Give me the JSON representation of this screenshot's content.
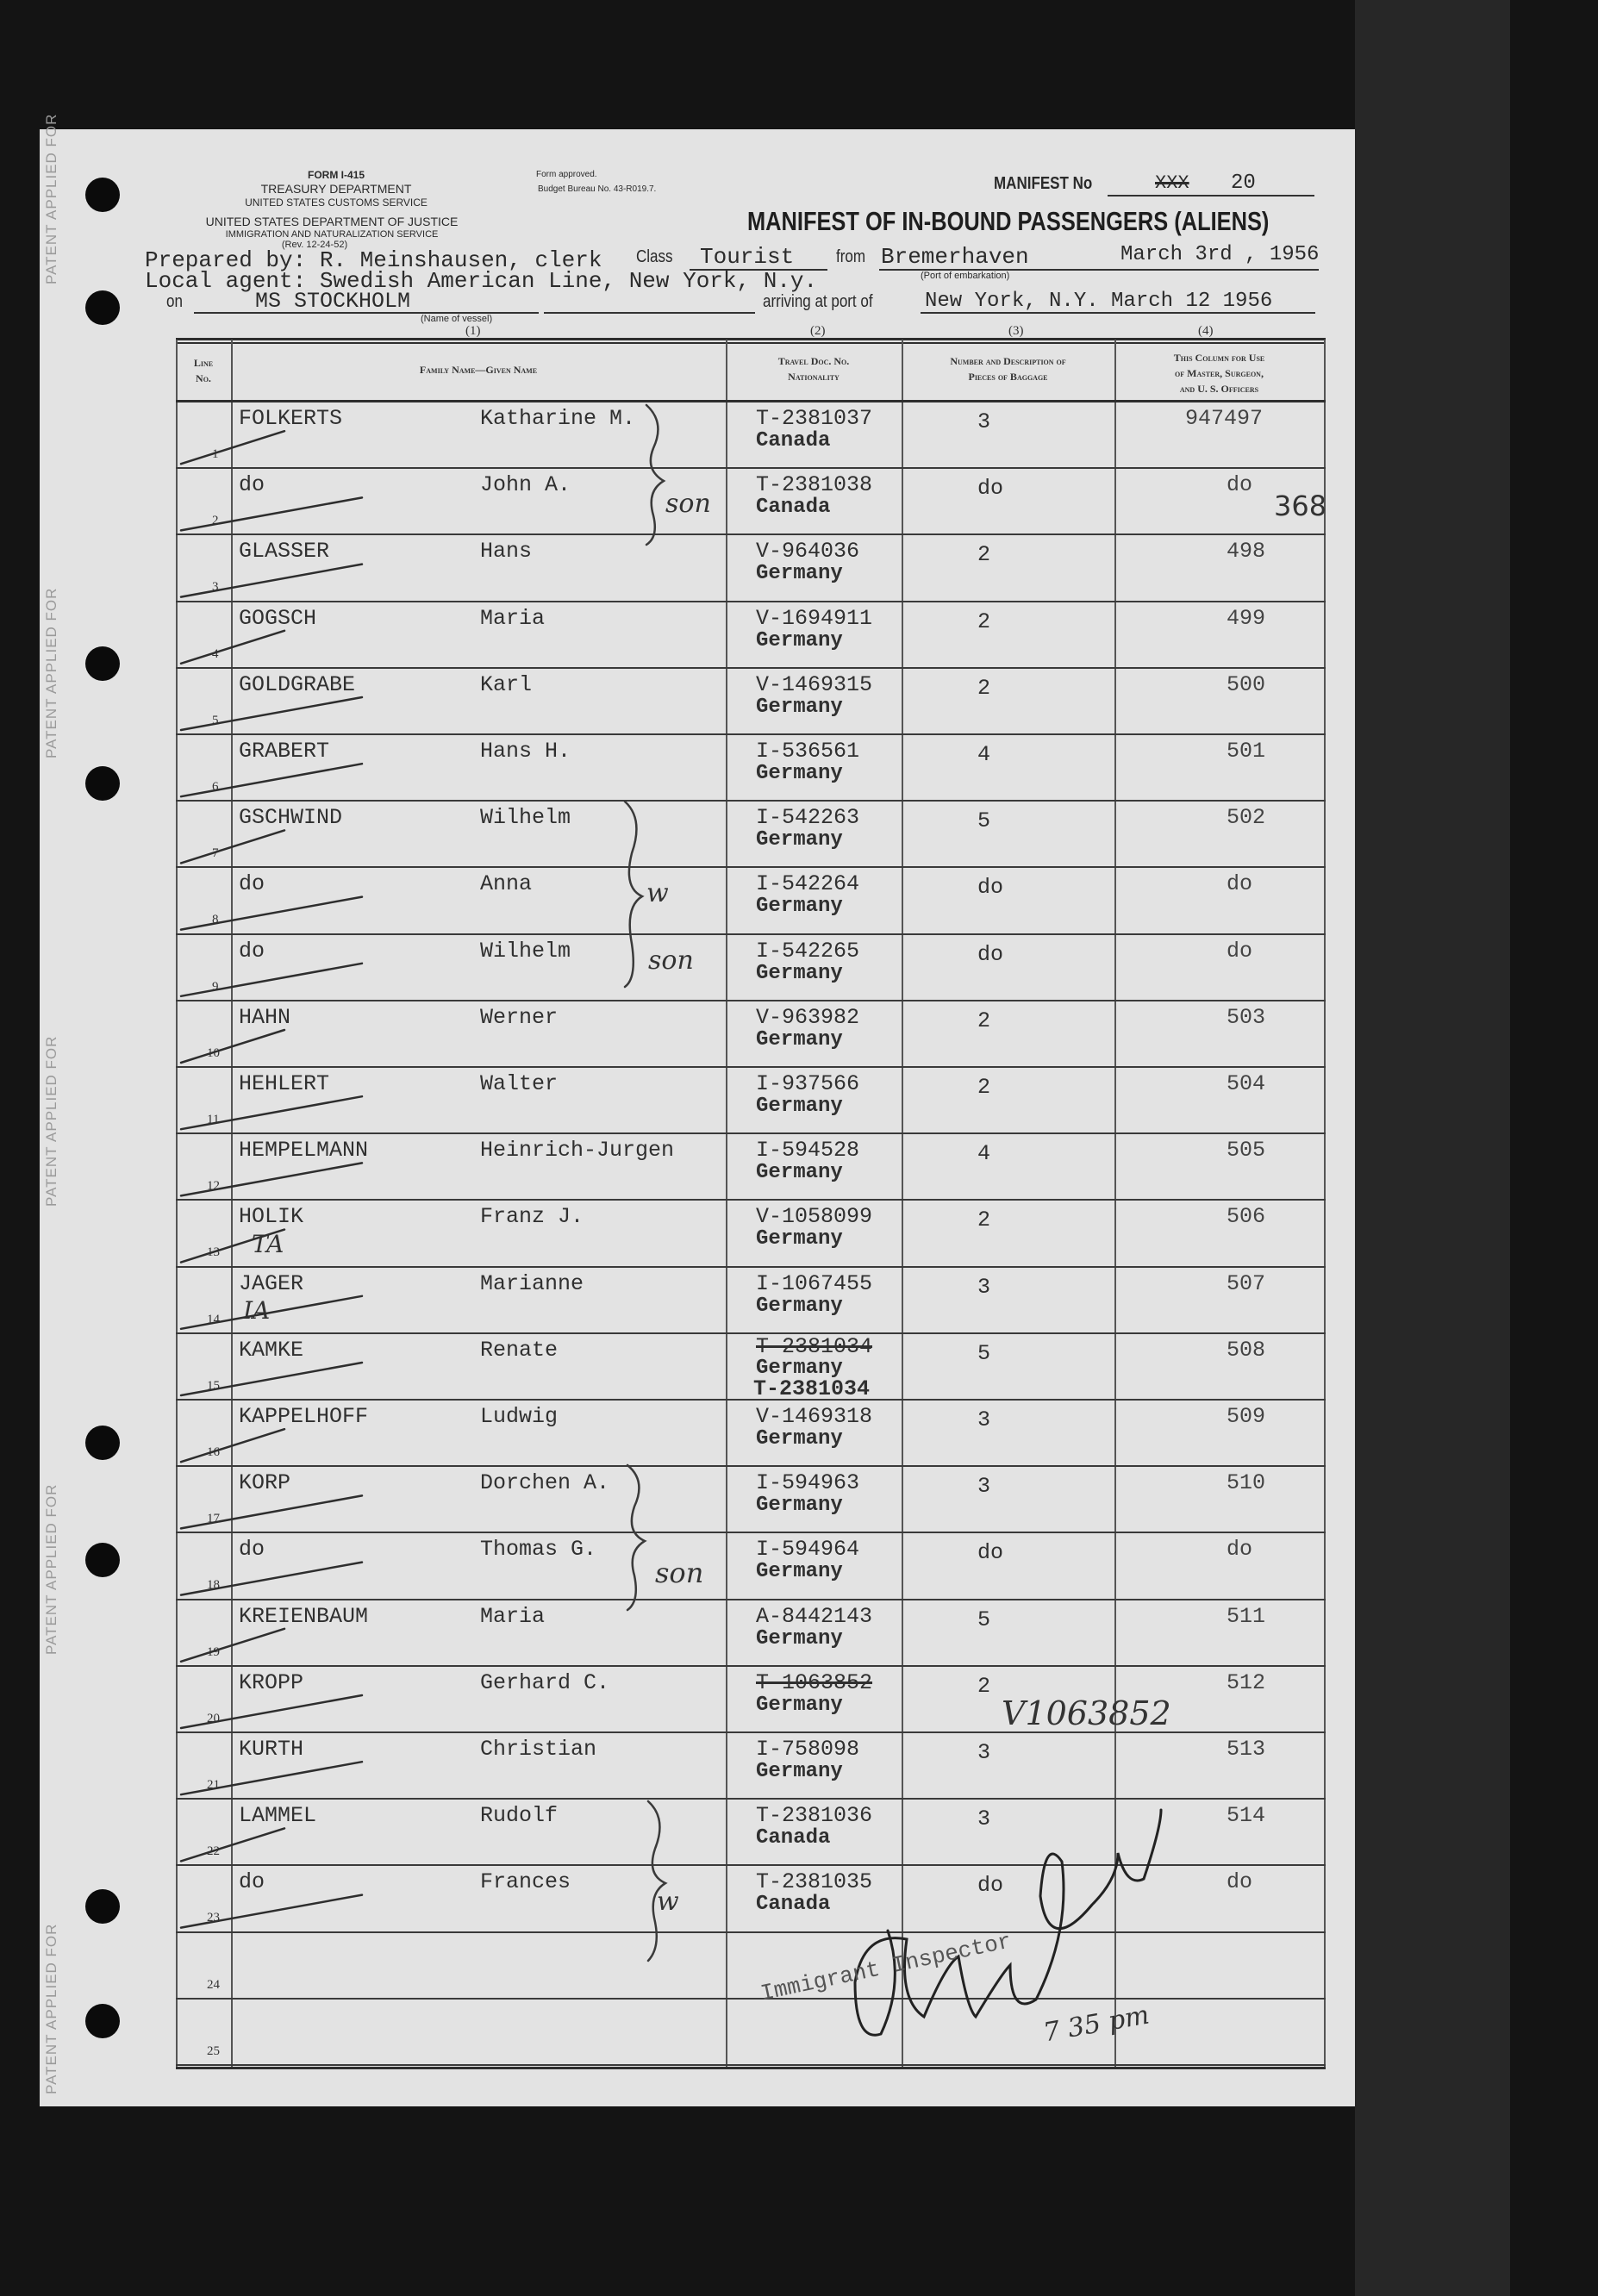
{
  "margin": {
    "patent_text": "PATENT APPLIED FOR"
  },
  "form": {
    "form_no": "FORM I-415",
    "dept": "TREASURY DEPARTMENT",
    "customs": "UNITED STATES CUSTOMS SERVICE",
    "justice": "UNITED STATES DEPARTMENT OF JUSTICE",
    "ins": "IMMIGRATION AND NATURALIZATION SERVICE",
    "rev": "(Rev. 12-24-52)",
    "approved": "Form approved.",
    "budget": "Budget Bureau No. 43-R019.7."
  },
  "manifest": {
    "label": "MANIFEST No",
    "struck": "XXX",
    "number": "20",
    "title": "MANIFEST OF IN-BOUND PASSENGERS (ALIENS)"
  },
  "voyage": {
    "prepared_by": "Prepared by: R. Meinshausen, clerk",
    "local_agent": "Local agent: Swedish American Line, New York, N.y.",
    "class_label": "Class",
    "class_value": "Tourist",
    "from_label": "from",
    "port": "Bremerhaven",
    "port_caption": "(Port of embarkation)",
    "date_depart": "March 3rd , 1956",
    "on_label": "on",
    "vessel": "MS STOCKHOLM",
    "vessel_caption": "(Name of vessel)",
    "arriving_label": "arriving at port of",
    "arrival": "New York, N.Y. March 12 1956"
  },
  "columns": {
    "numbers": [
      "(1)",
      "(2)",
      "(3)",
      "(4)"
    ],
    "line_no": [
      "Line",
      "No."
    ],
    "name": "Family Name—Given Name",
    "doc": [
      "Travel Doc. No.",
      "Nationality"
    ],
    "baggage": [
      "Number and Description of",
      "Pieces of Baggage"
    ],
    "officers": [
      "This Column for Use",
      "of Master, Surgeon,",
      "and U. S. Officers"
    ]
  },
  "rows": [
    {
      "line": "1",
      "family": "FOLKERTS",
      "given": "Katharine M.",
      "doc": "T-2381037",
      "nationality": "Canada",
      "baggage": "3",
      "officer": "947497"
    },
    {
      "line": "2",
      "family": "do",
      "given": "John A.",
      "doc": "T-2381038",
      "nationality": "Canada",
      "baggage": "do",
      "officer": "do"
    },
    {
      "line": "3",
      "family": "GLASSER",
      "given": "Hans",
      "doc": "V-964036",
      "nationality": "Germany",
      "baggage": "2",
      "officer": "498"
    },
    {
      "line": "4",
      "family": "GOGSCH",
      "given": "Maria",
      "doc": "V-1694911",
      "nationality": "Germany",
      "baggage": "2",
      "officer": "499"
    },
    {
      "line": "5",
      "family": "GOLDGRABE",
      "given": "Karl",
      "doc": "V-1469315",
      "nationality": "Germany",
      "baggage": "2",
      "officer": "500"
    },
    {
      "line": "6",
      "family": "GRABERT",
      "given": "Hans H.",
      "doc": "I-536561",
      "nationality": "Germany",
      "baggage": "4",
      "officer": "501"
    },
    {
      "line": "7",
      "family": "GSCHWIND",
      "given": "Wilhelm",
      "doc": "I-542263",
      "nationality": "Germany",
      "baggage": "5",
      "officer": "502"
    },
    {
      "line": "8",
      "family": "do",
      "given": "Anna",
      "doc": "I-542264",
      "nationality": "Germany",
      "baggage": "do",
      "officer": "do"
    },
    {
      "line": "9",
      "family": "do",
      "given": "Wilhelm",
      "doc": "I-542265",
      "nationality": "Germany",
      "baggage": "do",
      "officer": "do"
    },
    {
      "line": "10",
      "family": "HAHN",
      "given": "Werner",
      "doc": "V-963982",
      "nationality": "Germany",
      "baggage": "2",
      "officer": "503"
    },
    {
      "line": "11",
      "family": "HEHLERT",
      "given": "Walter",
      "doc": "I-937566",
      "nationality": "Germany",
      "baggage": "2",
      "officer": "504"
    },
    {
      "line": "12",
      "family": "HEMPELMANN",
      "given": "Heinrich-Jurgen",
      "doc": "I-594528",
      "nationality": "Germany",
      "baggage": "4",
      "officer": "505"
    },
    {
      "line": "13",
      "family": "HOLIK",
      "given": "Franz J.",
      "doc": "V-1058099",
      "nationality": "Germany",
      "baggage": "2",
      "officer": "506"
    },
    {
      "line": "14",
      "family": "JAGER",
      "given": "Marianne",
      "doc": "I-1067455",
      "nationality": "Germany",
      "baggage": "3",
      "officer": "507"
    },
    {
      "line": "15",
      "family": "KAMKE",
      "given": "Renate",
      "doc_struck": "T-2381034",
      "nationality": "Germany",
      "doc_corrected": "T-2381034",
      "baggage": "5",
      "officer": "508"
    },
    {
      "line": "16",
      "family": "KAPPELHOFF",
      "given": "Ludwig",
      "doc": "V-1469318",
      "nationality": "Germany",
      "baggage": "3",
      "officer": "509"
    },
    {
      "line": "17",
      "family": "KORP",
      "given": "Dorchen A.",
      "doc": "I-594963",
      "nationality": "Germany",
      "baggage": "3",
      "officer": "510"
    },
    {
      "line": "18",
      "family": "do",
      "given": "Thomas G.",
      "doc": "I-594964",
      "nationality": "Germany",
      "baggage": "do",
      "officer": "do"
    },
    {
      "line": "19",
      "family": "KREIENBAUM",
      "given": "Maria",
      "doc": "A-8442143",
      "nationality": "Germany",
      "baggage": "5",
      "officer": "511"
    },
    {
      "line": "20",
      "family": "KROPP",
      "given": "Gerhard C.",
      "doc_struck": "T-1063852",
      "nationality": "Germany",
      "baggage": "2",
      "officer": "512"
    },
    {
      "line": "21",
      "family": "KURTH",
      "given": "Christian",
      "doc": "I-758098",
      "nationality": "Germany",
      "baggage": "3",
      "officer": "513"
    },
    {
      "line": "22",
      "family": "LAMMEL",
      "given": "Rudolf",
      "doc": "T-2381036",
      "nationality": "Canada",
      "baggage": "3",
      "officer": "514"
    },
    {
      "line": "23",
      "family": "do",
      "given": "Frances",
      "doc": "T-2381035",
      "nationality": "Canada",
      "baggage": "do",
      "officer": "do"
    },
    {
      "line": "24"
    },
    {
      "line": "25"
    }
  ],
  "annotations": {
    "page_count": "368",
    "kropp_doc_handwritten": "V1063852",
    "holik_note": "TA",
    "jager_note": "IA",
    "son_1": "son",
    "wife_1": "w",
    "son_2": "son",
    "son_3": "son",
    "wife_2": "w",
    "stamp": "Immigrant Inspector",
    "time": "7 35 pm"
  },
  "colors": {
    "paper": "#e3e3e3",
    "ink": "#2b2b2b",
    "background": "#141414"
  }
}
